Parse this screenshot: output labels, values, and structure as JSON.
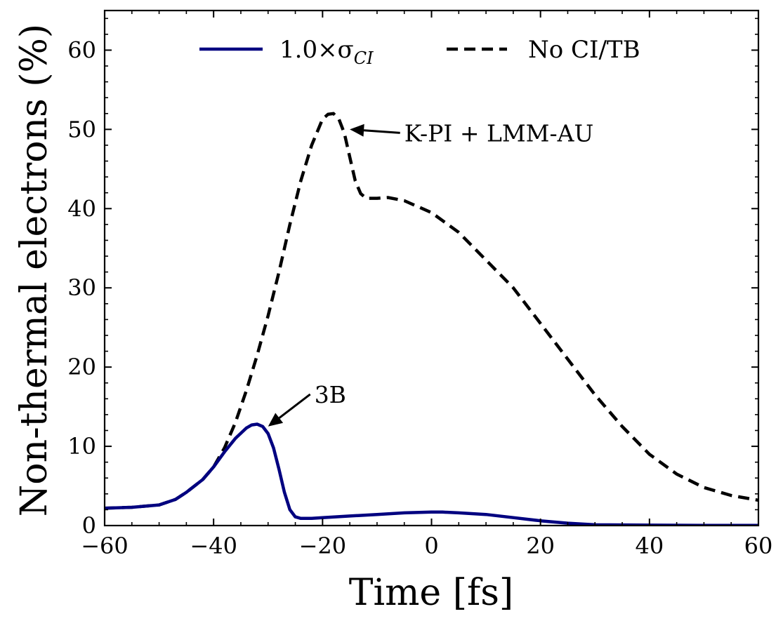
{
  "chart_data": {
    "type": "line",
    "title": "",
    "xlabel": "Time [fs]",
    "ylabel": "Non-thermal electrons (%)",
    "xlim": [
      -60,
      60
    ],
    "ylim": [
      0,
      65
    ],
    "xticks": [
      -60,
      -40,
      -20,
      0,
      20,
      40,
      60
    ],
    "xtick_labels": [
      "−60",
      "−40",
      "−20",
      "0",
      "20",
      "40",
      "60"
    ],
    "yticks": [
      0,
      10,
      20,
      30,
      40,
      50,
      60
    ],
    "ytick_labels": [
      "0",
      "10",
      "20",
      "30",
      "40",
      "50",
      "60"
    ],
    "grid": false,
    "legend_position": "top-center",
    "series": [
      {
        "name": "1.0×σ",
        "name_subscript": "CI",
        "color": "#000080",
        "style": "solid",
        "x": [
          -60,
          -55,
          -50,
          -47,
          -45,
          -42,
          -40,
          -38,
          -36,
          -34,
          -33,
          -32,
          -31,
          -30,
          -29,
          -28,
          -27,
          -26,
          -25,
          -24,
          -22,
          -20,
          -15,
          -10,
          -5,
          0,
          2,
          5,
          10,
          15,
          20,
          25,
          30,
          40,
          50,
          60
        ],
        "y": [
          2.2,
          2.3,
          2.6,
          3.3,
          4.2,
          5.8,
          7.4,
          9.3,
          11.0,
          12.3,
          12.7,
          12.8,
          12.5,
          11.6,
          9.8,
          7.1,
          4.2,
          2.0,
          1.1,
          0.9,
          0.9,
          1.0,
          1.2,
          1.4,
          1.6,
          1.7,
          1.7,
          1.6,
          1.4,
          1.0,
          0.6,
          0.3,
          0.1,
          0.05,
          0.02,
          0.02
        ]
      },
      {
        "name": "No CI/TB",
        "color": "#000000",
        "style": "dashed",
        "x": [
          -60,
          -55,
          -50,
          -47,
          -45,
          -42,
          -40,
          -38,
          -36,
          -34,
          -32,
          -30,
          -28,
          -26,
          -24,
          -22,
          -20,
          -19,
          -18,
          -17,
          -16,
          -15,
          -14,
          -13,
          -12,
          -10,
          -8,
          -5,
          0,
          5,
          10,
          15,
          20,
          25,
          30,
          35,
          40,
          45,
          50,
          55,
          60
        ],
        "y": [
          2.2,
          2.3,
          2.6,
          3.3,
          4.2,
          5.8,
          7.4,
          9.8,
          13.0,
          17.0,
          21.5,
          26.5,
          32.0,
          38.0,
          43.5,
          48.0,
          51.3,
          51.9,
          52.0,
          51.3,
          49.5,
          46.5,
          43.5,
          41.9,
          41.3,
          41.3,
          41.4,
          41.0,
          39.5,
          37.0,
          33.5,
          30.0,
          25.5,
          21.0,
          16.5,
          12.5,
          9.0,
          6.5,
          4.8,
          3.8,
          3.2
        ]
      }
    ],
    "annotations": [
      {
        "text": "K-PI + LMM-AU",
        "xy": [
          -15,
          50
        ],
        "xytext": [
          -5,
          48.5
        ]
      },
      {
        "text": "3B",
        "xy": [
          -30,
          12.5
        ],
        "xytext": [
          -21.5,
          15.5
        ]
      }
    ]
  }
}
